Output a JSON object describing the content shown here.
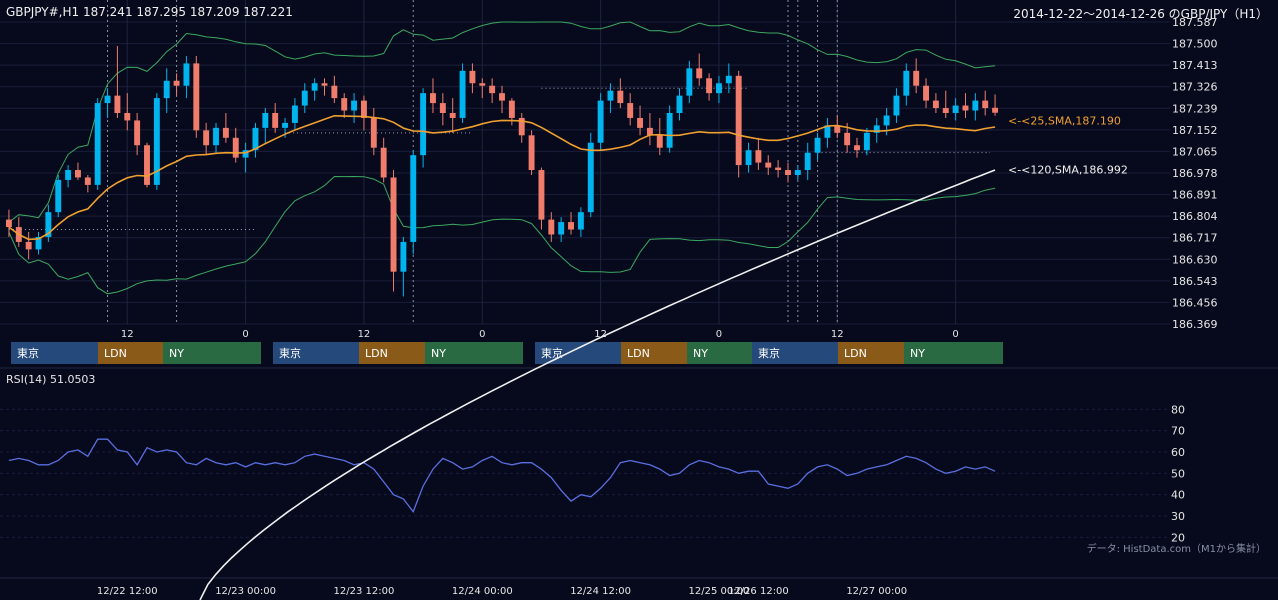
{
  "header": {
    "symbol": "GBPJPY#,H1 187.241 187.295 187.209 187.221",
    "range": "2014-12-22～2014-12-26 のGBP/JPY（H1）"
  },
  "colors": {
    "background": "#070a1c",
    "bull": "#00b4f0",
    "bear": "#f07c6c",
    "sma25": "#f0a030",
    "sma120": "#f0f0f0",
    "bollinger": "#3ca860",
    "rsi": "#5a6ee0",
    "tokyo": "#24497a",
    "london": "#8a5a18",
    "newyork": "#2a6a42"
  },
  "chart_data": [
    {
      "type": "candlestick",
      "symbol": "GBPJPY#",
      "timeframe": "H1",
      "yticks": [
        "187.587",
        "187.500",
        "187.413",
        "187.326",
        "187.239",
        "187.152",
        "187.065",
        "186.978",
        "186.891",
        "186.804",
        "186.717",
        "186.630",
        "186.543",
        "186.456",
        "186.369"
      ],
      "ylim": [
        186.369,
        187.587
      ],
      "xticks": [
        "12",
        "0",
        "12",
        "0",
        "12",
        "0",
        "12",
        "0"
      ],
      "xtick_positions": [
        12,
        24,
        36,
        48,
        60,
        72,
        84,
        96
      ],
      "candle_count": 101,
      "candles": [
        [
          186.79,
          186.83,
          186.72,
          186.76
        ],
        [
          186.76,
          186.8,
          186.68,
          186.7
        ],
        [
          186.7,
          186.74,
          186.63,
          186.67
        ],
        [
          186.67,
          186.74,
          186.65,
          186.72
        ],
        [
          186.72,
          186.85,
          186.7,
          186.82
        ],
        [
          186.82,
          186.97,
          186.8,
          186.95
        ],
        [
          186.95,
          187.01,
          186.92,
          186.99
        ],
        [
          186.99,
          187.02,
          186.95,
          186.96
        ],
        [
          186.96,
          186.97,
          186.9,
          186.93
        ],
        [
          186.93,
          187.28,
          186.91,
          187.26
        ],
        [
          187.26,
          187.32,
          187.2,
          187.29
        ],
        [
          187.29,
          187.49,
          187.2,
          187.22
        ],
        [
          187.22,
          187.3,
          187.15,
          187.19
        ],
        [
          187.19,
          187.22,
          187.05,
          187.09
        ],
        [
          187.09,
          187.1,
          186.92,
          186.93
        ],
        [
          186.93,
          187.3,
          186.91,
          187.28
        ],
        [
          187.28,
          187.4,
          187.22,
          187.35
        ],
        [
          187.35,
          187.38,
          187.29,
          187.33
        ],
        [
          187.33,
          187.45,
          187.28,
          187.42
        ],
        [
          187.42,
          187.45,
          187.12,
          187.15
        ],
        [
          187.15,
          187.18,
          187.05,
          187.09
        ],
        [
          187.09,
          187.18,
          187.06,
          187.16
        ],
        [
          187.16,
          187.22,
          187.1,
          187.12
        ],
        [
          187.12,
          187.16,
          187.02,
          187.04
        ],
        [
          187.04,
          187.1,
          186.98,
          187.07
        ],
        [
          187.07,
          187.18,
          187.04,
          187.16
        ],
        [
          187.16,
          187.24,
          187.1,
          187.22
        ],
        [
          187.22,
          187.26,
          187.14,
          187.16
        ],
        [
          187.16,
          187.2,
          187.12,
          187.18
        ],
        [
          187.18,
          187.28,
          187.15,
          187.25
        ],
        [
          187.25,
          187.34,
          187.22,
          187.31
        ],
        [
          187.31,
          187.36,
          187.27,
          187.34
        ],
        [
          187.34,
          187.36,
          187.29,
          187.33
        ],
        [
          187.33,
          187.37,
          187.26,
          187.28
        ],
        [
          187.28,
          187.3,
          187.2,
          187.23
        ],
        [
          187.23,
          187.3,
          187.18,
          187.27
        ],
        [
          187.27,
          187.29,
          187.15,
          187.2
        ],
        [
          187.2,
          187.24,
          187.05,
          187.08
        ],
        [
          187.08,
          187.12,
          186.94,
          186.96
        ],
        [
          186.96,
          186.99,
          186.5,
          186.58
        ],
        [
          186.58,
          186.72,
          186.48,
          186.7
        ],
        [
          186.7,
          187.07,
          186.65,
          187.05
        ],
        [
          187.05,
          187.32,
          187.0,
          187.3
        ],
        [
          187.3,
          187.36,
          187.22,
          187.26
        ],
        [
          187.26,
          187.3,
          187.17,
          187.22
        ],
        [
          187.22,
          187.28,
          187.14,
          187.2
        ],
        [
          187.2,
          187.42,
          187.18,
          187.39
        ],
        [
          187.39,
          187.42,
          187.3,
          187.34
        ],
        [
          187.34,
          187.36,
          187.28,
          187.33
        ],
        [
          187.33,
          187.36,
          187.26,
          187.3
        ],
        [
          187.3,
          187.33,
          187.22,
          187.27
        ],
        [
          187.27,
          187.28,
          187.17,
          187.2
        ],
        [
          187.2,
          187.22,
          187.1,
          187.13
        ],
        [
          187.13,
          187.15,
          186.97,
          186.99
        ],
        [
          186.99,
          187.0,
          186.75,
          186.79
        ],
        [
          186.79,
          186.82,
          186.7,
          186.73
        ],
        [
          186.73,
          186.8,
          186.7,
          186.78
        ],
        [
          186.78,
          186.82,
          186.73,
          186.75
        ],
        [
          186.75,
          186.84,
          186.72,
          186.82
        ],
        [
          186.82,
          187.14,
          186.8,
          187.1
        ],
        [
          187.1,
          187.3,
          187.07,
          187.27
        ],
        [
          187.27,
          187.34,
          187.22,
          187.31
        ],
        [
          187.31,
          187.36,
          187.24,
          187.26
        ],
        [
          187.26,
          187.3,
          187.17,
          187.2
        ],
        [
          187.2,
          187.25,
          187.13,
          187.16
        ],
        [
          187.16,
          187.22,
          187.09,
          187.13
        ],
        [
          187.13,
          187.2,
          187.05,
          187.08
        ],
        [
          187.08,
          187.25,
          187.06,
          187.22
        ],
        [
          187.22,
          187.32,
          187.19,
          187.29
        ],
        [
          187.29,
          187.43,
          187.26,
          187.4
        ],
        [
          187.4,
          187.46,
          187.33,
          187.36
        ],
        [
          187.36,
          187.38,
          187.27,
          187.3
        ],
        [
          187.3,
          187.37,
          187.26,
          187.34
        ],
        [
          187.34,
          187.42,
          187.3,
          187.37
        ],
        [
          187.37,
          187.39,
          186.96,
          187.01
        ],
        [
          187.01,
          187.1,
          186.98,
          187.07
        ],
        [
          187.07,
          187.12,
          186.99,
          187.02
        ],
        [
          187.02,
          187.05,
          186.97,
          187.0
        ],
        [
          187.0,
          187.03,
          186.96,
          186.99
        ],
        [
          186.99,
          187.02,
          186.94,
          186.97
        ],
        [
          186.97,
          187.01,
          186.95,
          186.99
        ],
        [
          186.99,
          187.1,
          186.95,
          187.06
        ],
        [
          187.06,
          187.14,
          187.03,
          187.12
        ],
        [
          187.12,
          187.2,
          187.08,
          187.17
        ],
        [
          187.17,
          187.21,
          187.12,
          187.14
        ],
        [
          187.14,
          187.18,
          187.06,
          187.09
        ],
        [
          187.09,
          187.12,
          187.04,
          187.07
        ],
        [
          187.07,
          187.16,
          187.05,
          187.14
        ],
        [
          187.14,
          187.2,
          187.1,
          187.17
        ],
        [
          187.17,
          187.24,
          187.13,
          187.21
        ],
        [
          187.21,
          187.32,
          187.18,
          187.29
        ],
        [
          187.29,
          187.42,
          187.25,
          187.39
        ],
        [
          187.39,
          187.44,
          187.3,
          187.33
        ],
        [
          187.33,
          187.36,
          187.24,
          187.27
        ],
        [
          187.27,
          187.3,
          187.22,
          187.24
        ],
        [
          187.24,
          187.31,
          187.2,
          187.22
        ],
        [
          187.22,
          187.28,
          187.19,
          187.25
        ],
        [
          187.25,
          187.3,
          187.2,
          187.23
        ],
        [
          187.23,
          187.3,
          187.19,
          187.27
        ],
        [
          187.27,
          187.31,
          187.21,
          187.24
        ],
        [
          187.241,
          187.295,
          187.209,
          187.221
        ]
      ],
      "indicators": {
        "sma25": {
          "label": "<-<25,SMA,187.190",
          "value": 187.19
        },
        "sma120": {
          "label": "<-<120,SMA,186.992",
          "value": 186.992
        },
        "bollinger": "25-period bands"
      },
      "sessions": [
        {
          "tokyo": "東京",
          "london": "LDN",
          "newyork": "NY"
        },
        {
          "tokyo": "東京",
          "london": "LDN",
          "newyork": "NY"
        },
        {
          "tokyo": "東京",
          "london": "LDN",
          "newyork": "NY"
        },
        {
          "tokyo": "東京",
          "london": "LDN",
          "newyork": "NY"
        }
      ]
    },
    {
      "type": "line",
      "title": "RSI(14) 51.0503",
      "yticks": [
        "80",
        "70",
        "60",
        "50",
        "40",
        "30",
        "20"
      ],
      "ylim": [
        15,
        90
      ],
      "xlabels": [
        "12/22 12:00",
        "12/23 00:00",
        "12/23 12:00",
        "12/24 00:00",
        "12/24 12:00",
        "12/25 00:00",
        "12/26 12:00",
        "12/27 00:00"
      ],
      "values": [
        56,
        57,
        56,
        54,
        54,
        56,
        60,
        61,
        58,
        66,
        66,
        61,
        60,
        54,
        62,
        60,
        61,
        60,
        55,
        54,
        57,
        55,
        54,
        55,
        53,
        55,
        54,
        55,
        54,
        55,
        58,
        59,
        58,
        57,
        56,
        54,
        55,
        52,
        46,
        40,
        38,
        32,
        44,
        52,
        57,
        55,
        52,
        53,
        56,
        58,
        55,
        54,
        55,
        55,
        52,
        48,
        42,
        37,
        40,
        39,
        43,
        48,
        55,
        56,
        55,
        54,
        52,
        49,
        50,
        54,
        56,
        55,
        53,
        52,
        50,
        51,
        51,
        45,
        44,
        43,
        45,
        50,
        53,
        54,
        52,
        49,
        50,
        52,
        53,
        54,
        56,
        58,
        57,
        55,
        52,
        50,
        51,
        53,
        52,
        53,
        51
      ]
    }
  ],
  "rsi_title": "RSI(14) 51.0503",
  "source": "データ: HistData.com（M1から集計）"
}
